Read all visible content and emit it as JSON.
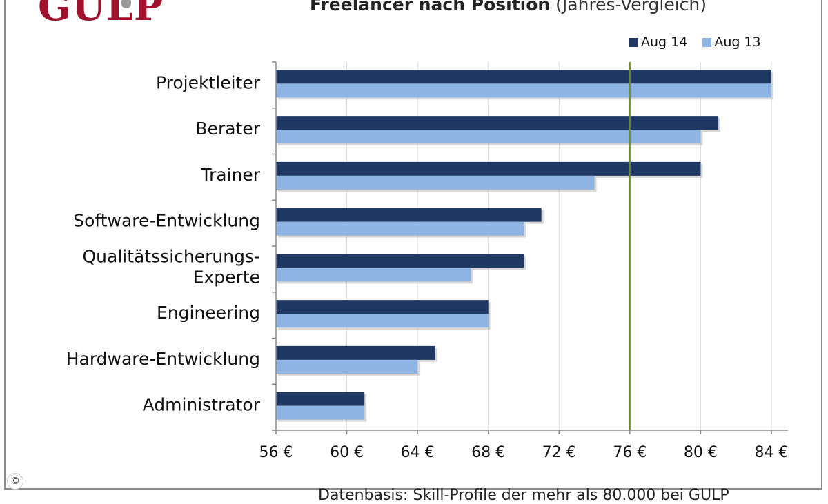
{
  "logo": {
    "text": "GULP"
  },
  "title": {
    "main": "Freelancer nach Position",
    "sub": "(Jahres-Vergleich)"
  },
  "footer": {
    "source": "Datenbasis: Skill-Profile der mehr als 80.000 bei GULP"
  },
  "copyright": "©",
  "colors": {
    "aug14": "#1f3864",
    "aug13": "#8db4e2",
    "reference_line": "#6b8e23",
    "grid": "#d9d9d9"
  },
  "chart_data": {
    "type": "bar",
    "orientation": "horizontal",
    "title": "Freelancer nach Position (Jahres-Vergleich)",
    "categories": [
      "Projektleiter",
      "Berater",
      "Trainer",
      "Software-Entwicklung",
      "Qualitätssicherungs-Experte",
      "Engineering",
      "Hardware-Entwicklung",
      "Administrator"
    ],
    "category_lines": [
      [
        "Projektleiter"
      ],
      [
        "Berater"
      ],
      [
        "Trainer"
      ],
      [
        "Software-Entwicklung"
      ],
      [
        "Qualitätssicherungs-",
        "Experte"
      ],
      [
        "Engineering"
      ],
      [
        "Hardware-Entwicklung"
      ],
      [
        "Administrator"
      ]
    ],
    "series": [
      {
        "name": "Aug 14",
        "values": [
          84,
          81,
          80,
          71,
          70,
          68,
          65,
          61
        ]
      },
      {
        "name": "Aug 13",
        "values": [
          84,
          80,
          74,
          70,
          67,
          68,
          64,
          61
        ]
      }
    ],
    "xlim": [
      56,
      84
    ],
    "xticks": [
      56,
      60,
      64,
      68,
      72,
      76,
      80,
      84
    ],
    "tick_labels": [
      "56 €",
      "60 €",
      "64 €",
      "68 €",
      "72 €",
      "76 €",
      "80 €",
      "84 €"
    ],
    "reference_line": 76,
    "grid": true,
    "legend": "top-right"
  }
}
